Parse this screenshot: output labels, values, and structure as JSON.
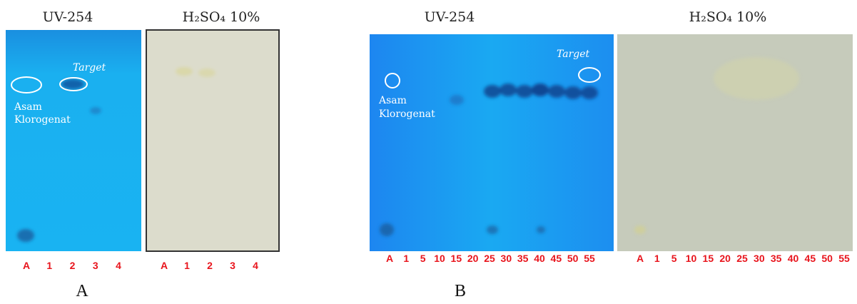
{
  "panels": [
    {
      "label": "A",
      "plates": [
        {
          "title": "UV-254",
          "lanes": [
            "A",
            "1",
            "2",
            "3",
            "4"
          ],
          "annotations": [
            "Target",
            "Asam Klorogenat"
          ]
        },
        {
          "title": "H₂SO₄  10%",
          "lanes": [
            "A",
            "1",
            "2",
            "3",
            "4"
          ]
        }
      ]
    },
    {
      "label": "B",
      "plates": [
        {
          "title": "UV-254",
          "lanes": [
            "A",
            "1",
            "5",
            "10",
            "15",
            "20",
            "25",
            "30",
            "35",
            "40",
            "45",
            "50",
            "55"
          ],
          "annotations": [
            "Target",
            "Asam Klorogenat"
          ]
        },
        {
          "title": "H₂SO₄  10%",
          "lanes": [
            "A",
            "1",
            "5",
            "10",
            "15",
            "20",
            "25",
            "30",
            "35",
            "40",
            "45",
            "50",
            "55"
          ]
        }
      ]
    }
  ]
}
